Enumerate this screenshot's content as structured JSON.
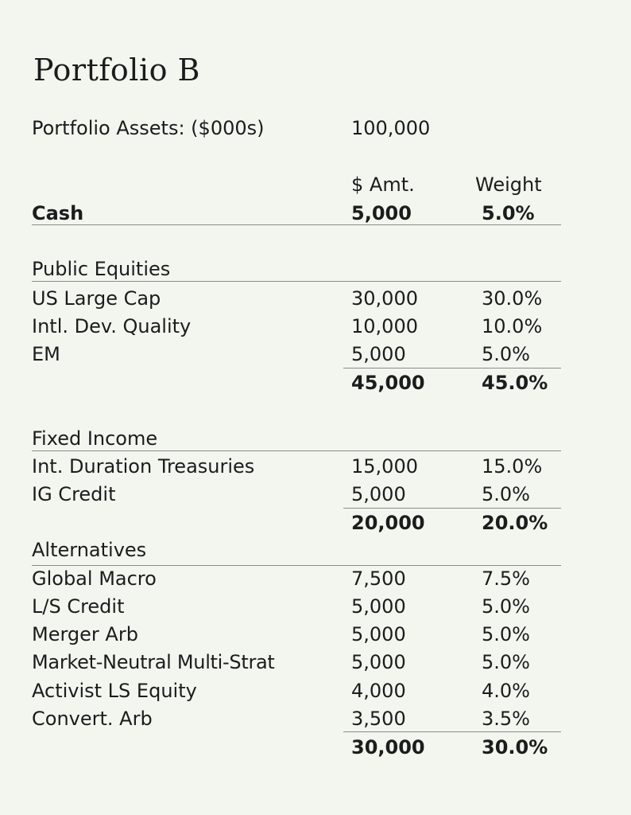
{
  "title": "Portfolio B",
  "assets": {
    "label": "Portfolio Assets: ($000s)",
    "value": "100,000"
  },
  "headers": {
    "amount": "$ Amt.",
    "weight": "Weight"
  },
  "cash": {
    "label": "Cash",
    "amount": "5,000",
    "weight": "5.0%"
  },
  "sections": [
    {
      "name": "Public Equities",
      "rows": [
        {
          "label": "US Large Cap",
          "amount": "30,000",
          "weight": "30.0%"
        },
        {
          "label": "Intl. Dev. Quality",
          "amount": "10,000",
          "weight": "10.0%"
        },
        {
          "label": "EM",
          "amount": "5,000",
          "weight": "5.0%"
        }
      ],
      "total": {
        "amount": "45,000",
        "weight": "45.0%"
      }
    },
    {
      "name": "Fixed Income",
      "rows": [
        {
          "label": "Int. Duration Treasuries",
          "amount": "15,000",
          "weight": "15.0%"
        },
        {
          "label": "IG Credit",
          "amount": "5,000",
          "weight": "5.0%"
        }
      ],
      "total": {
        "amount": "20,000",
        "weight": "20.0%"
      }
    },
    {
      "name": "Alternatives",
      "rows": [
        {
          "label": "Global Macro",
          "amount": "7,500",
          "weight": "7.5%"
        },
        {
          "label": "L/S Credit",
          "amount": "5,000",
          "weight": "5.0%"
        },
        {
          "label": "Merger Arb",
          "amount": "5,000",
          "weight": "5.0%"
        },
        {
          "label": "Market-Neutral Multi-Strat",
          "amount": "5,000",
          "weight": "5.0%"
        },
        {
          "label": "Activist LS Equity",
          "amount": "4,000",
          "weight": "4.0%"
        },
        {
          "label": "Convert. Arb",
          "amount": "3,500",
          "weight": "3.5%"
        }
      ],
      "total": {
        "amount": "30,000",
        "weight": "30.0%"
      }
    }
  ]
}
